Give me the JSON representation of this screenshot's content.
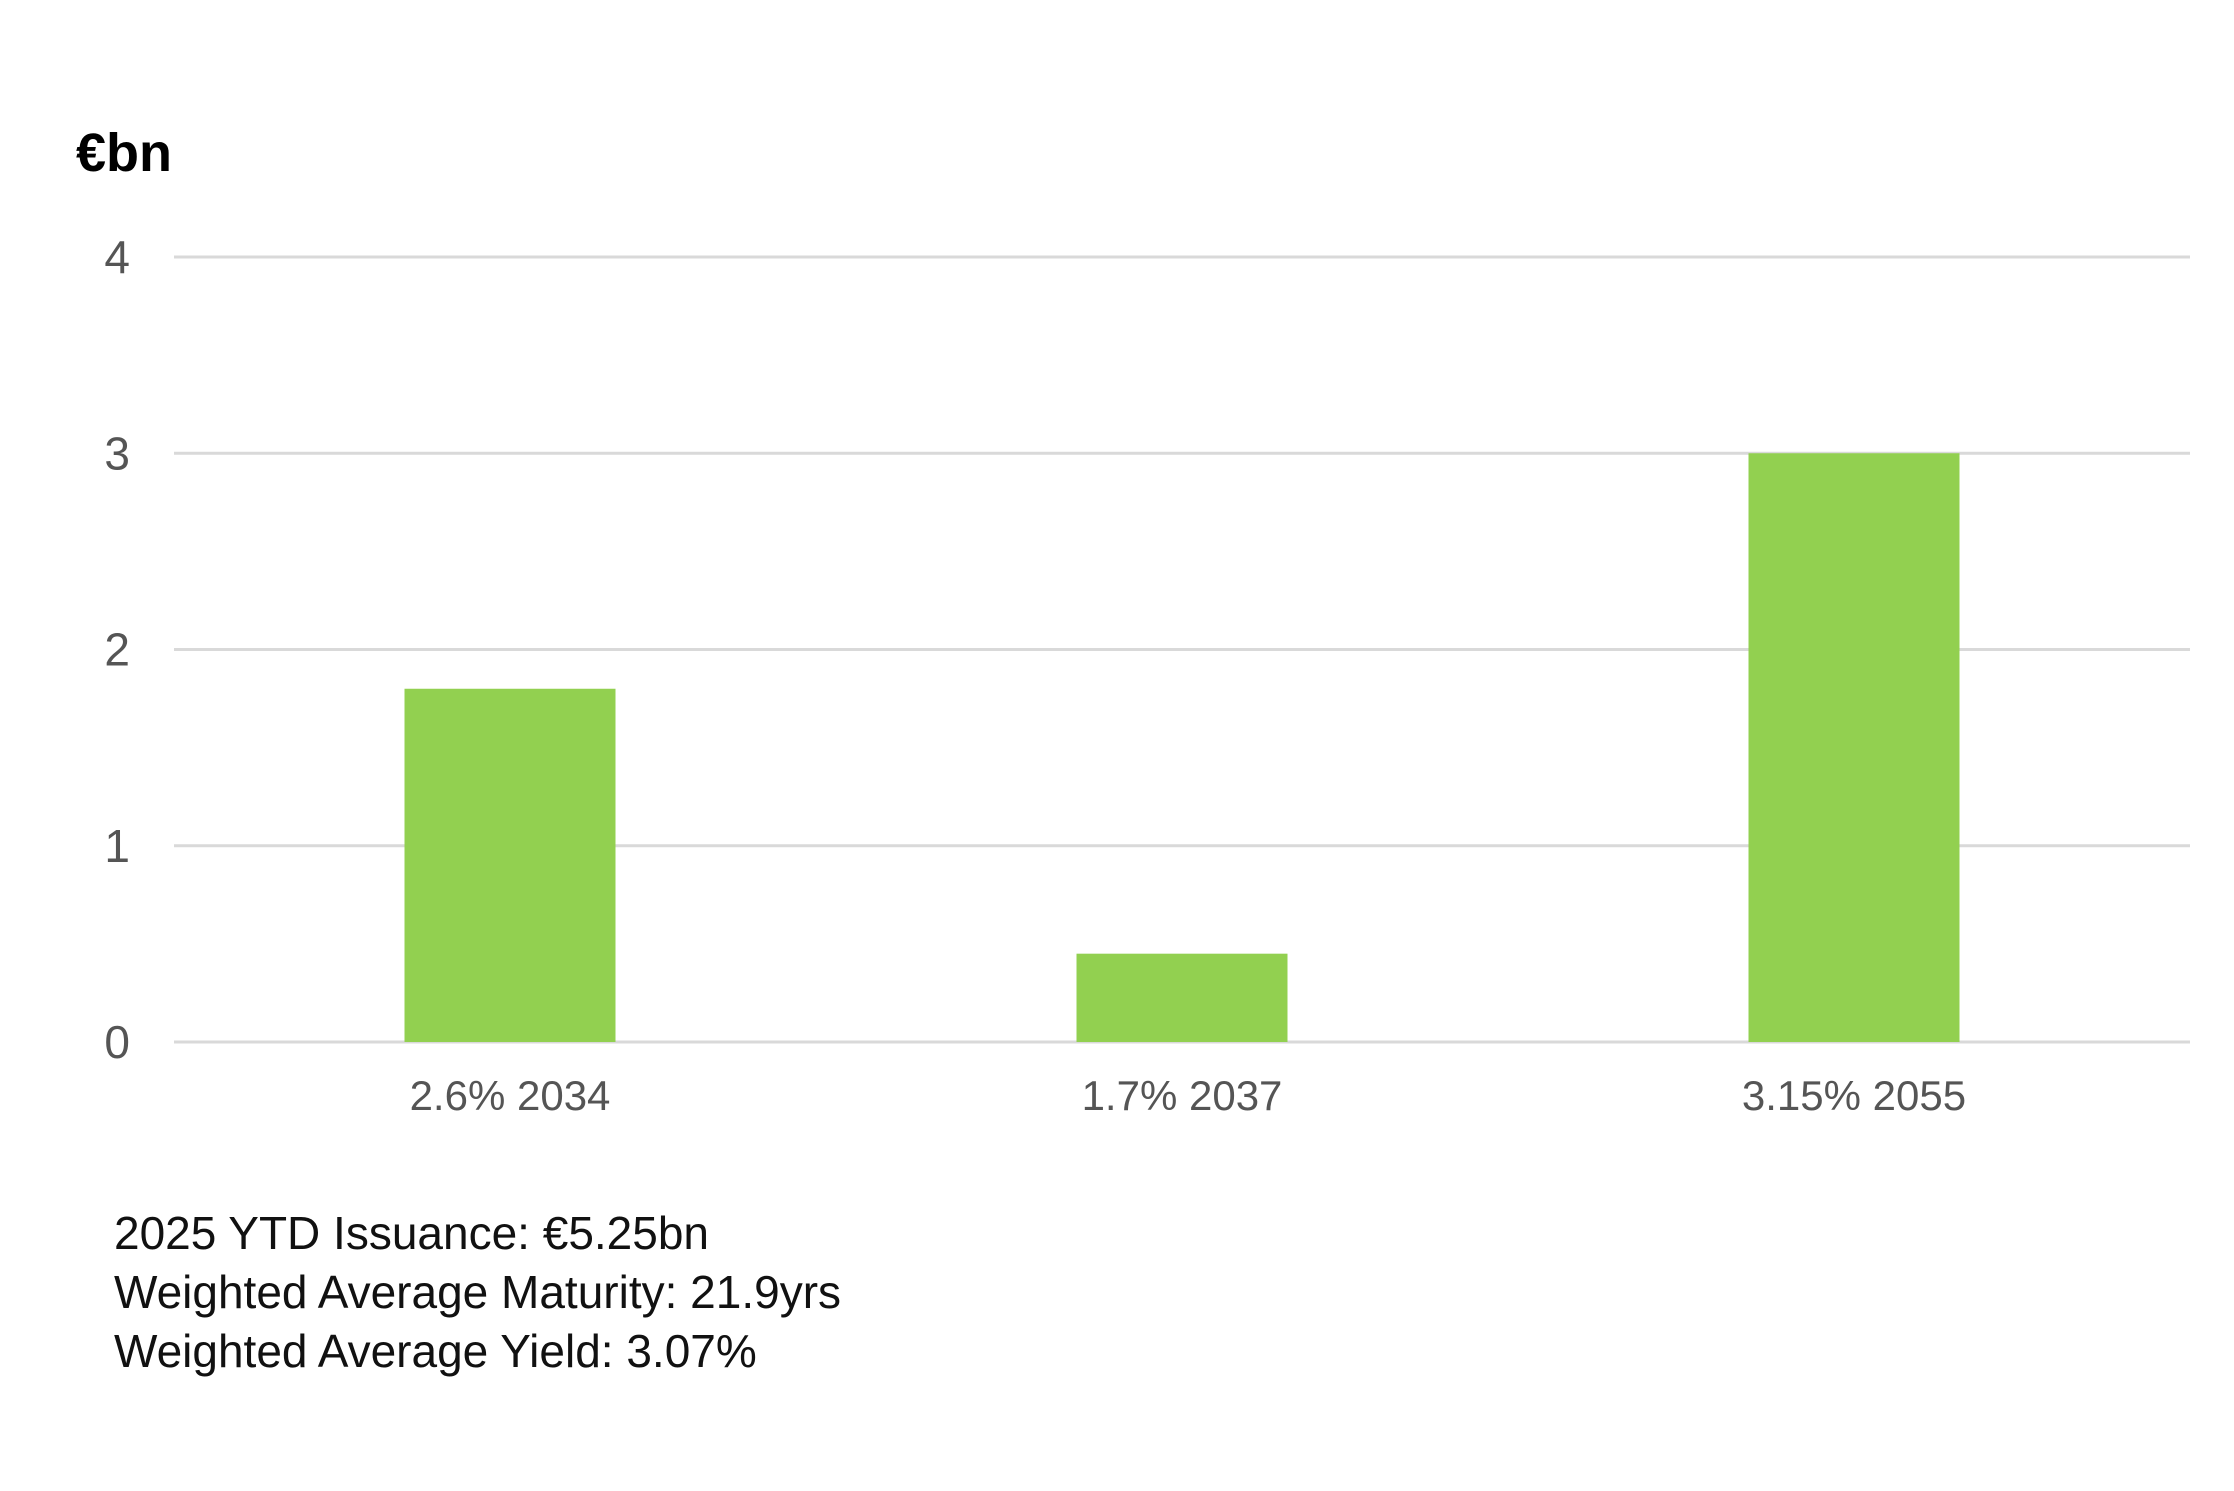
{
  "chart_data": {
    "type": "bar",
    "ylabel": "€bn",
    "categories": [
      "2.6% 2034",
      "1.7% 2037",
      "3.15% 2055"
    ],
    "values": [
      1.8,
      0.45,
      3.0
    ],
    "ylim": [
      0,
      4
    ],
    "yticks": [
      "0",
      "1",
      "2",
      "3",
      "4"
    ],
    "grid": true,
    "bar_color": "#92d050",
    "grid_color": "#d9d9d9"
  },
  "notes": {
    "issuance": "2025 YTD Issuance: €5.25bn",
    "maturity": "Weighted Average Maturity: 21.9yrs",
    "yield": "Weighted Average Yield: 3.07%"
  }
}
